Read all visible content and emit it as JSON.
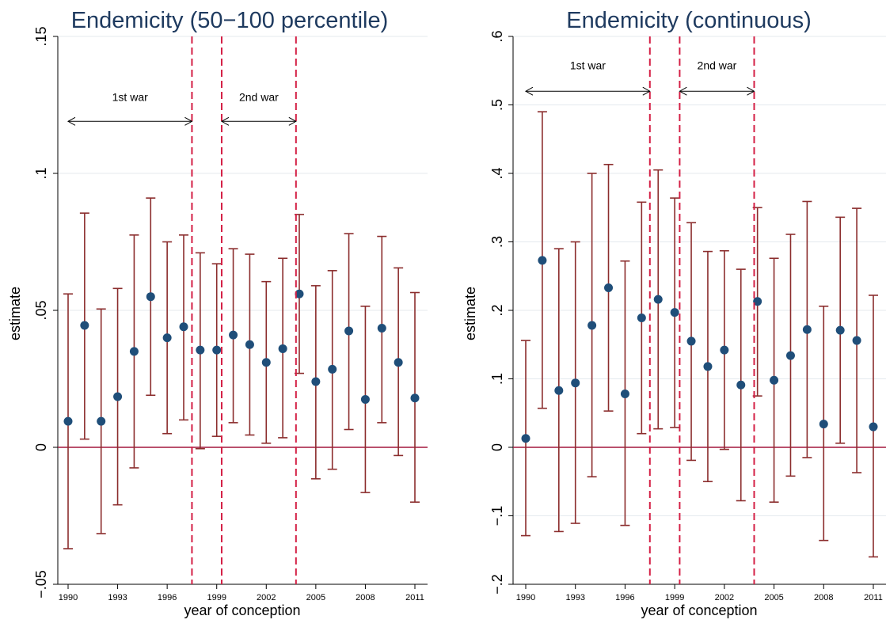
{
  "chart_data": [
    {
      "type": "scatter",
      "title": "Endemicity (50−100 percentile)",
      "xlabel": "year of conception",
      "ylabel": "estimate",
      "x_ticks": [
        "1990",
        "1993",
        "1996",
        "1999",
        "2002",
        "2005",
        "2008",
        "2011"
      ],
      "y_ticks": [
        "−.05",
        "0",
        ".05",
        ".1",
        ".15"
      ],
      "ylim": [
        -0.05,
        0.15
      ],
      "xlim": [
        1990,
        2011
      ],
      "x": [
        1990,
        1991,
        1992,
        1993,
        1994,
        1995,
        1996,
        1997,
        1998,
        1999,
        2000,
        2001,
        2002,
        2003,
        2004,
        2005,
        2006,
        2007,
        2008,
        2009,
        2010,
        2011
      ],
      "estimate": [
        0.0095,
        0.0445,
        0.0095,
        0.0185,
        0.035,
        0.055,
        0.04,
        0.044,
        0.0355,
        0.0355,
        0.041,
        0.0375,
        0.031,
        0.036,
        0.056,
        0.024,
        0.0285,
        0.0425,
        0.0175,
        0.0435,
        0.031,
        0.018
      ],
      "ci_low": [
        -0.037,
        0.003,
        -0.0315,
        -0.021,
        -0.0075,
        0.019,
        0.005,
        0.01,
        -0.0005,
        0.004,
        0.009,
        0.0045,
        0.0015,
        0.0035,
        0.027,
        -0.0115,
        -0.008,
        0.0065,
        -0.0165,
        0.009,
        -0.003,
        -0.02
      ],
      "ci_high": [
        0.056,
        0.0855,
        0.0505,
        0.058,
        0.0775,
        0.091,
        0.075,
        0.0775,
        0.071,
        0.067,
        0.0725,
        0.0705,
        0.0605,
        0.069,
        0.085,
        0.059,
        0.0645,
        0.078,
        0.0515,
        0.077,
        0.0655,
        0.0565
      ],
      "reference_line": 0,
      "vertical_lines": [
        1997.5,
        1999.3,
        2003.8
      ],
      "annotations": [
        {
          "label": "1st war",
          "from": 1990,
          "to": 1997.5,
          "y": 0.119,
          "label_y": 0.1265
        },
        {
          "label": "2nd war",
          "from": 1999.3,
          "to": 2003.8,
          "y": 0.119,
          "label_y": 0.1265
        }
      ],
      "grid": true
    },
    {
      "type": "scatter",
      "title": "Endemicity (continuous)",
      "xlabel": "year of conception",
      "ylabel": "estimate",
      "x_ticks": [
        "1990",
        "1993",
        "1996",
        "1999",
        "2002",
        "2005",
        "2008",
        "2011"
      ],
      "y_ticks": [
        "−.2",
        "−.1",
        "0",
        ".1",
        ".2",
        ".3",
        ".4",
        ".5",
        ".6"
      ],
      "ylim": [
        -0.2,
        0.6
      ],
      "xlim": [
        1990,
        2011
      ],
      "x": [
        1990,
        1991,
        1992,
        1993,
        1994,
        1995,
        1996,
        1997,
        1998,
        1999,
        2000,
        2001,
        2002,
        2003,
        2004,
        2005,
        2006,
        2007,
        2008,
        2009,
        2010,
        2011
      ],
      "estimate": [
        0.013,
        0.273,
        0.083,
        0.094,
        0.178,
        0.233,
        0.078,
        0.189,
        0.216,
        0.197,
        0.155,
        0.118,
        0.142,
        0.091,
        0.213,
        0.098,
        0.134,
        0.172,
        0.034,
        0.171,
        0.156,
        0.03
      ],
      "ci_low": [
        -0.129,
        0.057,
        -0.123,
        -0.111,
        -0.043,
        0.053,
        -0.114,
        0.02,
        0.027,
        0.029,
        -0.019,
        -0.05,
        -0.003,
        -0.078,
        0.075,
        -0.08,
        -0.042,
        -0.015,
        -0.136,
        0.006,
        -0.037,
        -0.16
      ],
      "ci_high": [
        0.156,
        0.49,
        0.29,
        0.3,
        0.4,
        0.413,
        0.272,
        0.358,
        0.405,
        0.364,
        0.328,
        0.286,
        0.287,
        0.26,
        0.35,
        0.276,
        0.311,
        0.359,
        0.206,
        0.336,
        0.349,
        0.222
      ],
      "reference_line": 0,
      "vertical_lines": [
        1997.5,
        1999.3,
        2003.8
      ],
      "annotations": [
        {
          "label": "1st war",
          "from": 1990,
          "to": 1997.5,
          "y": 0.52,
          "label_y": 0.552
        },
        {
          "label": "2nd war",
          "from": 1999.3,
          "to": 2003.8,
          "y": 0.52,
          "label_y": 0.552
        }
      ],
      "grid": true
    }
  ],
  "colors": {
    "title": "#1e3a5f",
    "point": "#1f4e79",
    "ci": "#8b2d2d",
    "reference": "#a3173d",
    "war_line": "#d41f45"
  }
}
